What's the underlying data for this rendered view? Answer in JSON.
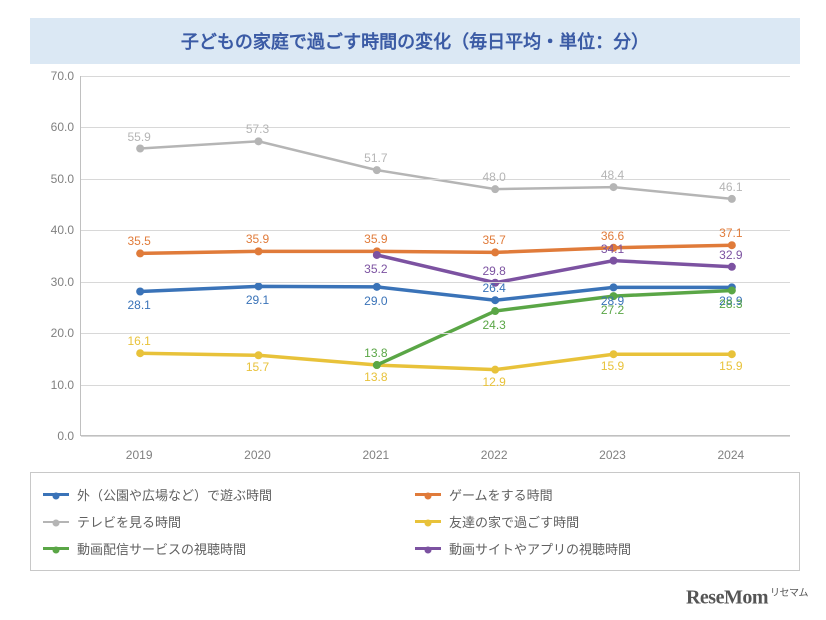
{
  "title": "子どもの家庭で過ごす時間の変化（毎日平均・単位：分）",
  "title_bg": "#dbe8f4",
  "title_color": "#3b5ba5",
  "title_fontsize": 18,
  "background_color": "#ffffff",
  "grid_color": "#d8d8d8",
  "axis_label_color": "#808080",
  "axis_fontsize": 12,
  "label_fontsize": 12,
  "ylim": [
    0,
    70
  ],
  "ytick_step": 10,
  "y_tick_format": "0.0",
  "categories": [
    "2019",
    "2020",
    "2021",
    "2022",
    "2023",
    "2024"
  ],
  "series": [
    {
      "name": "外（公園や広場など）で遊ぶ時間",
      "color": "#3a73b8",
      "width": 3.5,
      "values": [
        28.1,
        29.1,
        29.0,
        26.4,
        28.9,
        28.9
      ],
      "label_dy": [
        14,
        14,
        14,
        -12,
        14,
        14
      ]
    },
    {
      "name": "ゲームをする時間",
      "color": "#e07b3a",
      "width": 3.5,
      "values": [
        35.5,
        35.9,
        35.9,
        35.7,
        36.6,
        37.1
      ],
      "label_dy": [
        -12,
        -12,
        -12,
        -12,
        -12,
        -12
      ]
    },
    {
      "name": "テレビを見る時間",
      "color": "#b5b5b5",
      "width": 2.5,
      "values": [
        55.9,
        57.3,
        51.7,
        48.0,
        48.4,
        46.1
      ],
      "label_dy": [
        -12,
        -12,
        -12,
        -12,
        -12,
        -12
      ]
    },
    {
      "name": "友達の家で過ごす時間",
      "color": "#e8c23a",
      "width": 3.5,
      "values": [
        16.1,
        15.7,
        13.8,
        12.9,
        15.9,
        15.9
      ],
      "label_dy": [
        -12,
        12,
        12,
        12,
        12,
        12
      ]
    },
    {
      "name": "動画配信サービスの視聴時間",
      "color": "#5aa646",
      "width": 3.5,
      "values": [
        null,
        null,
        13.8,
        24.3,
        27.2,
        28.3
      ],
      "label_dy": [
        0,
        0,
        -12,
        14,
        14,
        14
      ]
    },
    {
      "name": "動画サイトやアプリの視聴時間",
      "color": "#7c52a1",
      "width": 3.5,
      "values": [
        null,
        null,
        35.2,
        29.8,
        34.1,
        32.9
      ],
      "label_dy": [
        0,
        0,
        14,
        -12,
        -12,
        -12
      ]
    }
  ],
  "legend_border_color": "#c8c8c8",
  "legend_fontsize": 13,
  "watermark": "ReseMom",
  "watermark_sub": "リセマム"
}
